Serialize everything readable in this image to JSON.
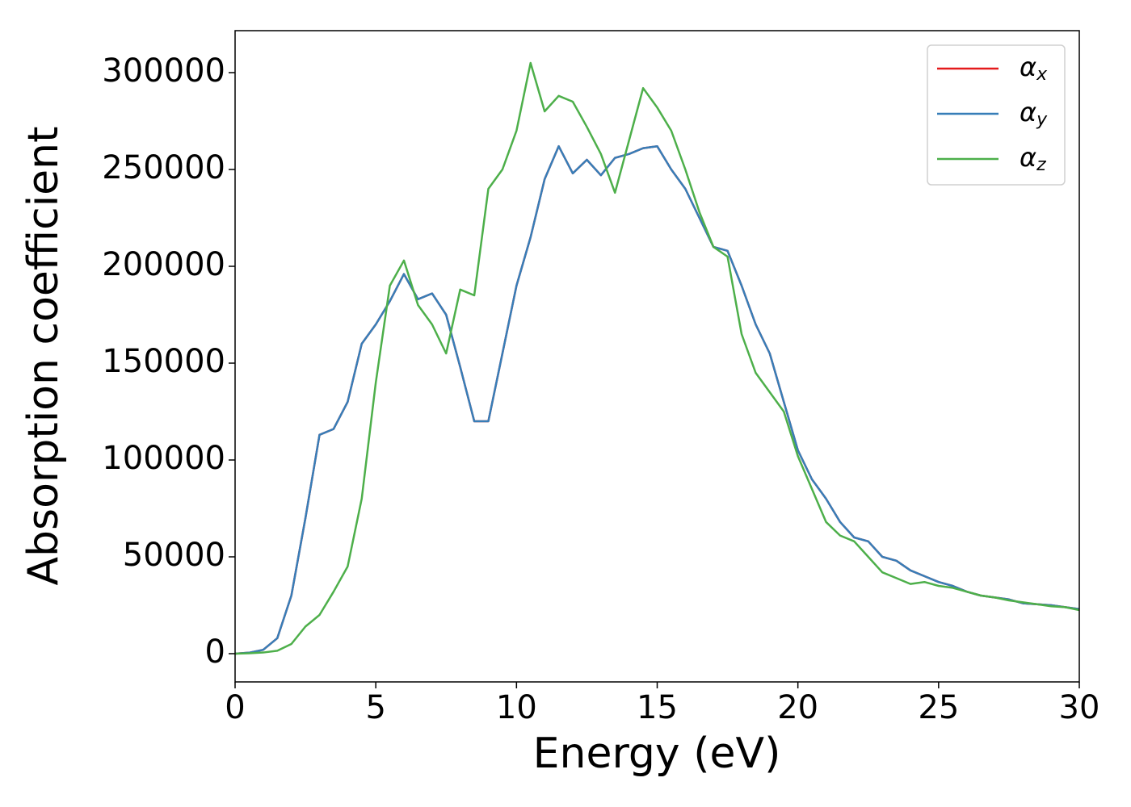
{
  "chart_data": {
    "type": "line",
    "xlabel": "Energy (eV)",
    "ylabel": "Absorption coefficient",
    "x": [
      0,
      0.5,
      1,
      1.5,
      2,
      2.5,
      3,
      3.5,
      4,
      4.5,
      5,
      5.5,
      6,
      6.5,
      7,
      7.5,
      8,
      8.5,
      9,
      9.5,
      10,
      10.5,
      11,
      11.5,
      12,
      12.5,
      13,
      13.5,
      14,
      14.5,
      15,
      15.5,
      16,
      16.5,
      17,
      17.5,
      18,
      18.5,
      19,
      19.5,
      20,
      20.5,
      21,
      21.5,
      22,
      22.5,
      23,
      23.5,
      24,
      24.5,
      25,
      25.5,
      26,
      26.5,
      27,
      27.5,
      28,
      28.5,
      29,
      29.5,
      30
    ],
    "series": [
      {
        "name": "αx",
        "color": "#e41a1c",
        "values": [
          0,
          500,
          2000,
          8000,
          30000,
          70000,
          113000,
          116000,
          130000,
          160000,
          170000,
          182000,
          196000,
          183000,
          186000,
          175000,
          148000,
          120000,
          120000,
          155000,
          190000,
          215000,
          245000,
          262000,
          248000,
          255000,
          247000,
          256000,
          258000,
          261000,
          262000,
          250000,
          240000,
          225000,
          210000,
          208000,
          190000,
          170000,
          155000,
          130000,
          105000,
          90000,
          80000,
          68000,
          60000,
          58000,
          50000,
          48000,
          43000,
          40000,
          37000,
          35000,
          32000,
          30000,
          29000,
          28000,
          26000,
          25500,
          25000,
          24000,
          23000
        ]
      },
      {
        "name": "αy",
        "color": "#377eb8",
        "values": [
          0,
          500,
          2000,
          8000,
          30000,
          70000,
          113000,
          116000,
          130000,
          160000,
          170000,
          182000,
          196000,
          183000,
          186000,
          175000,
          148000,
          120000,
          120000,
          155000,
          190000,
          215000,
          245000,
          262000,
          248000,
          255000,
          247000,
          256000,
          258000,
          261000,
          262000,
          250000,
          240000,
          225000,
          210000,
          208000,
          190000,
          170000,
          155000,
          130000,
          105000,
          90000,
          80000,
          68000,
          60000,
          58000,
          50000,
          48000,
          43000,
          40000,
          37000,
          35000,
          32000,
          30000,
          29000,
          28000,
          26000,
          25500,
          25000,
          24000,
          23000
        ]
      },
      {
        "name": "αz",
        "color": "#4daf4a",
        "values": [
          0,
          200,
          600,
          1500,
          5000,
          14000,
          20000,
          32000,
          45000,
          80000,
          140000,
          190000,
          203000,
          180000,
          170000,
          155000,
          188000,
          185000,
          240000,
          250000,
          270000,
          305000,
          280000,
          288000,
          285000,
          272000,
          258000,
          238000,
          265000,
          292000,
          282000,
          270000,
          250000,
          228000,
          210000,
          205000,
          165000,
          145000,
          135000,
          125000,
          102000,
          85000,
          68000,
          61000,
          58000,
          50000,
          42000,
          39000,
          36000,
          37000,
          35000,
          34000,
          32000,
          30000,
          29000,
          27500,
          26500,
          25500,
          24500,
          24000,
          22500
        ]
      }
    ],
    "xlim": [
      0,
      30
    ],
    "xticks": [
      0,
      5,
      10,
      15,
      20,
      25,
      30
    ],
    "ylim": [
      -14583,
      321667
    ],
    "yticks": [
      0,
      50000,
      100000,
      150000,
      200000,
      250000,
      300000
    ],
    "legend": "upper right"
  }
}
